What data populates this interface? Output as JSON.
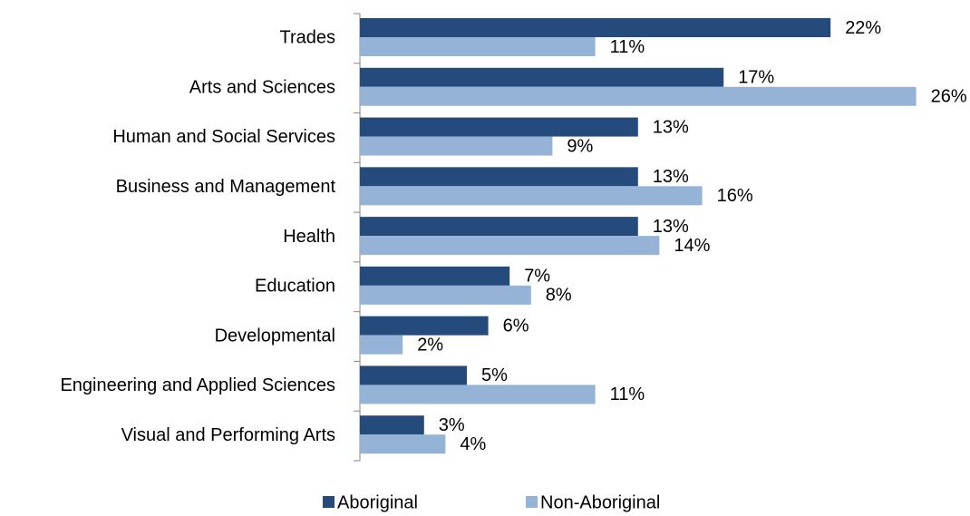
{
  "chart_data": {
    "type": "bar",
    "orientation": "horizontal",
    "categories": [
      "Trades",
      "Arts and Sciences",
      "Human and Social Services",
      "Business and Management",
      "Health",
      "Education",
      "Developmental",
      "Engineering and Applied Sciences",
      "Visual and Performing Arts"
    ],
    "series": [
      {
        "name": "Aboriginal",
        "color": "#254a7c",
        "values": [
          22,
          17,
          13,
          13,
          13,
          7,
          6,
          5,
          3
        ],
        "value_labels": [
          "22%",
          "17%",
          "13%",
          "13%",
          "13%",
          "7%",
          "6%",
          "5%",
          "3%"
        ]
      },
      {
        "name": "Non-Aboriginal",
        "color": "#95b3d7",
        "values": [
          11,
          26,
          9,
          16,
          14,
          8,
          2,
          11,
          4
        ],
        "value_labels": [
          "11%",
          "26%",
          "9%",
          "16%",
          "14%",
          "8%",
          "2%",
          "11%",
          "4%"
        ]
      }
    ],
    "legend": "bottom"
  }
}
